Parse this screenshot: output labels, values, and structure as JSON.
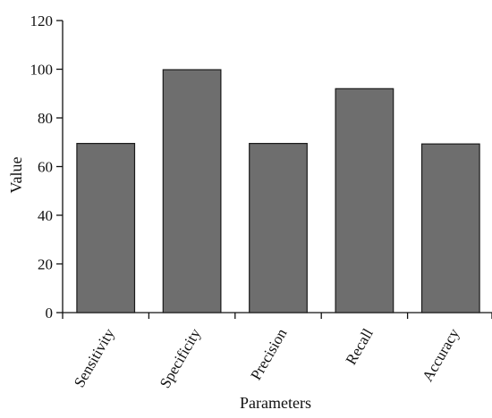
{
  "chart_data": {
    "type": "bar",
    "categories": [
      "Sensitivity",
      "Specificity",
      "Precision",
      "Recall",
      "Accuracy"
    ],
    "values": [
      69.5,
      99.8,
      69.5,
      92.0,
      69.3
    ],
    "title": "",
    "xlabel": "Parameters",
    "ylabel": "Value",
    "ylim": [
      0,
      120
    ],
    "yticks": [
      0,
      20,
      40,
      60,
      80,
      100,
      120
    ],
    "grid": false,
    "bar_color": "#6e6e6e",
    "bar_edge_color": "#1a1a1a"
  }
}
